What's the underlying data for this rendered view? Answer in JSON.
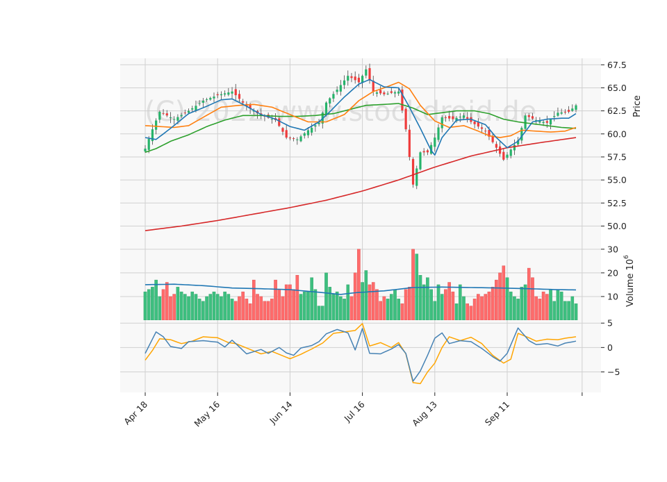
{
  "chart_data": {
    "type": "candlestick",
    "watermark": "(C) 2022 www.stockdroid.de",
    "colors": {
      "up": "#26b36a",
      "down": "#ef3b3b",
      "up_volume": "#3dbf7f",
      "down_volume": "#ff6b6b",
      "sma_fast": "#1f77b4",
      "sma_mid": "#ff7f0e",
      "sma_slow": "#2ca02c",
      "sma_long": "#d62728",
      "volume_avg": "#1f77b4",
      "macd": "#4682b4",
      "signal": "#ffa500",
      "panel_bg": "#f8f8f8",
      "grid": "#d0d0d0"
    },
    "x_tick_labels": [
      "Apr 18",
      "May 16",
      "Jun 14",
      "Jul 16",
      "Aug 13",
      "Sep 11"
    ],
    "x_tick_index": [
      0,
      20,
      40,
      60,
      80,
      100
    ],
    "n_points": 120,
    "price_panel": {
      "ylabel": "Price",
      "ylim": [
        48.0,
        68.2
      ],
      "yticks": [
        "50.0",
        "52.5",
        "55.0",
        "57.5",
        "60.0",
        "62.5",
        "65.0",
        "67.5"
      ],
      "ytick_values": [
        50.0,
        52.5,
        55.0,
        57.5,
        60.0,
        62.5,
        65.0,
        67.5
      ],
      "close_keypoints": [
        [
          0,
          58.4
        ],
        [
          2,
          60.5
        ],
        [
          4,
          62.4
        ],
        [
          8,
          61.6
        ],
        [
          12,
          62.5
        ],
        [
          16,
          63.6
        ],
        [
          20,
          64.2
        ],
        [
          24,
          64.6
        ],
        [
          28,
          63.0
        ],
        [
          32,
          62.0
        ],
        [
          36,
          61.5
        ],
        [
          39,
          59.6
        ],
        [
          42,
          59.4
        ],
        [
          45,
          60.4
        ],
        [
          48,
          61.2
        ],
        [
          50,
          63.4
        ],
        [
          53,
          64.8
        ],
        [
          56,
          66.3
        ],
        [
          59,
          65.6
        ],
        [
          61,
          67.0
        ],
        [
          63,
          64.6
        ],
        [
          66,
          64.3
        ],
        [
          70,
          64.6
        ],
        [
          72,
          60.5
        ],
        [
          74,
          54.5
        ],
        [
          76,
          58.0
        ],
        [
          78,
          58.0
        ],
        [
          80,
          59.6
        ],
        [
          82,
          61.8
        ],
        [
          85,
          61.6
        ],
        [
          88,
          62.0
        ],
        [
          90,
          61.3
        ],
        [
          94,
          60.3
        ],
        [
          97,
          58.5
        ],
        [
          99,
          57.2
        ],
        [
          101,
          58.3
        ],
        [
          103,
          59.3
        ],
        [
          105,
          62.0
        ],
        [
          108,
          61.5
        ],
        [
          111,
          61.2
        ],
        [
          114,
          62.3
        ],
        [
          117,
          62.4
        ],
        [
          119,
          63.1
        ]
      ],
      "sma_fast_keypoints": [
        [
          0,
          59.6
        ],
        [
          3,
          59.4
        ],
        [
          7,
          60.6
        ],
        [
          12,
          62.2
        ],
        [
          17,
          63.0
        ],
        [
          21,
          63.7
        ],
        [
          24,
          63.8
        ],
        [
          28,
          63.0
        ],
        [
          32,
          62.1
        ],
        [
          36,
          61.6
        ],
        [
          40,
          60.8
        ],
        [
          44,
          60.4
        ],
        [
          48,
          61.3
        ],
        [
          51,
          62.4
        ],
        [
          55,
          64.0
        ],
        [
          59,
          65.4
        ],
        [
          62,
          65.9
        ],
        [
          66,
          65.1
        ],
        [
          70,
          65.0
        ],
        [
          73,
          62.9
        ],
        [
          76,
          60.6
        ],
        [
          79,
          58.2
        ],
        [
          80,
          57.7
        ],
        [
          82,
          59.6
        ],
        [
          86,
          61.5
        ],
        [
          90,
          61.6
        ],
        [
          94,
          61.0
        ],
        [
          97,
          59.6
        ],
        [
          100,
          58.5
        ],
        [
          103,
          59.2
        ],
        [
          107,
          61.3
        ],
        [
          111,
          61.6
        ],
        [
          115,
          61.7
        ],
        [
          117,
          61.7
        ],
        [
          119,
          62.2
        ]
      ],
      "sma_mid_keypoints": [
        [
          0,
          60.9
        ],
        [
          4,
          60.8
        ],
        [
          8,
          60.7
        ],
        [
          12,
          60.9
        ],
        [
          16,
          61.8
        ],
        [
          21,
          62.9
        ],
        [
          26,
          63.1
        ],
        [
          30,
          63.2
        ],
        [
          35,
          62.9
        ],
        [
          40,
          62.1
        ],
        [
          45,
          61.3
        ],
        [
          50,
          61.3
        ],
        [
          55,
          62.1
        ],
        [
          59,
          63.6
        ],
        [
          63,
          64.6
        ],
        [
          66,
          65.0
        ],
        [
          70,
          65.6
        ],
        [
          73,
          64.9
        ],
        [
          76,
          63.1
        ],
        [
          80,
          61.4
        ],
        [
          84,
          60.7
        ],
        [
          88,
          60.9
        ],
        [
          92,
          60.3
        ],
        [
          95,
          59.8
        ],
        [
          98,
          59.6
        ],
        [
          101,
          59.8
        ],
        [
          104,
          60.4
        ],
        [
          108,
          60.3
        ],
        [
          112,
          60.2
        ],
        [
          116,
          60.3
        ],
        [
          119,
          60.7
        ]
      ],
      "sma_slow_keypoints": [
        [
          0,
          58.0
        ],
        [
          3,
          58.4
        ],
        [
          7,
          59.2
        ],
        [
          12,
          59.9
        ],
        [
          17,
          60.8
        ],
        [
          22,
          61.5
        ],
        [
          27,
          62.0
        ],
        [
          32,
          62.0
        ],
        [
          37,
          61.9
        ],
        [
          42,
          61.9
        ],
        [
          47,
          62.0
        ],
        [
          52,
          62.2
        ],
        [
          57,
          62.7
        ],
        [
          61,
          63.1
        ],
        [
          66,
          63.2
        ],
        [
          70,
          63.3
        ],
        [
          74,
          62.8
        ],
        [
          78,
          62.1
        ],
        [
          82,
          62.3
        ],
        [
          86,
          62.5
        ],
        [
          91,
          62.5
        ],
        [
          95,
          62.2
        ],
        [
          99,
          61.6
        ],
        [
          103,
          61.3
        ],
        [
          107,
          61.1
        ],
        [
          111,
          60.9
        ],
        [
          115,
          60.7
        ],
        [
          119,
          60.6
        ]
      ],
      "sma_long_keypoints": [
        [
          0,
          49.5
        ],
        [
          10,
          50.0
        ],
        [
          20,
          50.6
        ],
        [
          30,
          51.3
        ],
        [
          40,
          52.0
        ],
        [
          50,
          52.8
        ],
        [
          60,
          53.8
        ],
        [
          70,
          55.0
        ],
        [
          80,
          56.4
        ],
        [
          90,
          57.6
        ],
        [
          100,
          58.5
        ],
        [
          110,
          59.1
        ],
        [
          119,
          59.6
        ]
      ]
    },
    "volume_panel": {
      "ylabel": "Volume  10⁶",
      "ylabel_base": "Volume  10",
      "ylabel_exponent": "6",
      "ylim": [
        0,
        32
      ],
      "yticks": [
        "10",
        "20",
        "30"
      ],
      "ytick_values": [
        10,
        20,
        30
      ],
      "volumes": [
        12,
        13,
        14,
        17,
        10,
        13,
        16,
        10,
        11,
        14,
        12,
        11,
        10,
        12,
        11,
        9,
        8,
        10,
        11,
        12,
        11,
        10,
        12,
        11,
        9,
        8,
        10,
        12,
        9,
        7,
        17,
        11,
        10,
        8,
        8,
        9,
        17,
        13,
        10,
        15,
        15,
        13,
        19,
        11,
        12,
        12,
        18,
        13,
        6,
        6,
        20,
        14,
        11,
        12,
        10,
        9,
        15,
        10,
        20,
        30,
        16,
        21,
        15,
        16,
        13,
        8,
        10,
        9,
        11,
        13,
        9,
        7,
        13,
        14,
        30,
        28,
        19,
        15,
        18,
        13,
        8,
        15,
        11,
        13,
        16,
        12,
        7,
        15,
        10,
        7,
        6,
        9,
        11,
        10,
        11,
        12,
        14,
        17,
        20,
        23,
        18,
        12,
        10,
        9,
        14,
        15,
        22,
        18,
        10,
        9,
        12,
        11,
        13,
        8,
        13,
        12,
        8,
        8,
        10,
        7
      ],
      "avg_keypoints": [
        [
          0,
          15.0
        ],
        [
          8,
          15.2
        ],
        [
          16,
          14.6
        ],
        [
          24,
          13.6
        ],
        [
          32,
          13.3
        ],
        [
          40,
          12.9
        ],
        [
          48,
          11.8
        ],
        [
          54,
          10.9
        ],
        [
          58,
          11.6
        ],
        [
          66,
          12.4
        ],
        [
          74,
          13.8
        ],
        [
          82,
          14.0
        ],
        [
          90,
          13.8
        ],
        [
          98,
          13.6
        ],
        [
          106,
          13.3
        ],
        [
          114,
          12.9
        ],
        [
          119,
          12.8
        ]
      ]
    },
    "macd_panel": {
      "ylim": [
        -9.2,
        5.6
      ],
      "yticks": [
        "−5",
        "0",
        "5"
      ],
      "ytick_values": [
        -5,
        0,
        5
      ],
      "macd_keypoints": [
        [
          0,
          -1.2
        ],
        [
          3,
          3.2
        ],
        [
          5,
          2.2
        ],
        [
          7,
          0.2
        ],
        [
          10,
          -0.2
        ],
        [
          12,
          1.2
        ],
        [
          16,
          1.4
        ],
        [
          20,
          1.1
        ],
        [
          22,
          0.1
        ],
        [
          24,
          1.5
        ],
        [
          28,
          -1.3
        ],
        [
          32,
          -0.4
        ],
        [
          34,
          -1.2
        ],
        [
          37,
          0.0
        ],
        [
          39,
          -1.1
        ],
        [
          41,
          -1.6
        ],
        [
          43,
          -0.1
        ],
        [
          46,
          0.4
        ],
        [
          48,
          1.2
        ],
        [
          50,
          2.8
        ],
        [
          53,
          3.7
        ],
        [
          56,
          3.0
        ],
        [
          58,
          -0.5
        ],
        [
          60,
          3.9
        ],
        [
          62,
          -1.2
        ],
        [
          65,
          -1.3
        ],
        [
          68,
          -0.3
        ],
        [
          70,
          0.6
        ],
        [
          72,
          -1.2
        ],
        [
          74,
          -6.9
        ],
        [
          76,
          -4.8
        ],
        [
          78,
          -1.6
        ],
        [
          80,
          1.9
        ],
        [
          82,
          3.0
        ],
        [
          84,
          0.8
        ],
        [
          87,
          1.4
        ],
        [
          90,
          1.2
        ],
        [
          93,
          -0.2
        ],
        [
          96,
          -1.9
        ],
        [
          98,
          -2.8
        ],
        [
          100,
          -1.2
        ],
        [
          103,
          4.0
        ],
        [
          106,
          1.4
        ],
        [
          108,
          0.6
        ],
        [
          111,
          0.8
        ],
        [
          114,
          0.3
        ],
        [
          116,
          0.9
        ],
        [
          119,
          1.3
        ]
      ],
      "signal_keypoints": [
        [
          0,
          -2.6
        ],
        [
          2,
          -0.6
        ],
        [
          4,
          1.8
        ],
        [
          7,
          1.6
        ],
        [
          10,
          0.8
        ],
        [
          13,
          1.3
        ],
        [
          16,
          2.2
        ],
        [
          20,
          2.0
        ],
        [
          23,
          1.0
        ],
        [
          25,
          0.8
        ],
        [
          28,
          -0.1
        ],
        [
          32,
          -1.3
        ],
        [
          35,
          -0.8
        ],
        [
          37,
          -1.4
        ],
        [
          40,
          -2.3
        ],
        [
          43,
          -1.4
        ],
        [
          46,
          -0.3
        ],
        [
          49,
          0.9
        ],
        [
          52,
          2.9
        ],
        [
          55,
          3.2
        ],
        [
          58,
          3.5
        ],
        [
          60,
          4.9
        ],
        [
          62,
          0.3
        ],
        [
          65,
          1.0
        ],
        [
          68,
          0.0
        ],
        [
          70,
          1.0
        ],
        [
          72,
          -1.3
        ],
        [
          74,
          -7.2
        ],
        [
          76,
          -7.4
        ],
        [
          78,
          -5.0
        ],
        [
          80,
          -3.2
        ],
        [
          82,
          0.0
        ],
        [
          84,
          2.2
        ],
        [
          87,
          1.4
        ],
        [
          90,
          2.1
        ],
        [
          93,
          0.8
        ],
        [
          96,
          -1.6
        ],
        [
          99,
          -3.2
        ],
        [
          101,
          -2.4
        ],
        [
          103,
          2.9
        ],
        [
          106,
          2.0
        ],
        [
          108,
          1.3
        ],
        [
          111,
          1.7
        ],
        [
          114,
          1.6
        ],
        [
          116,
          1.9
        ],
        [
          119,
          2.2
        ]
      ]
    }
  }
}
